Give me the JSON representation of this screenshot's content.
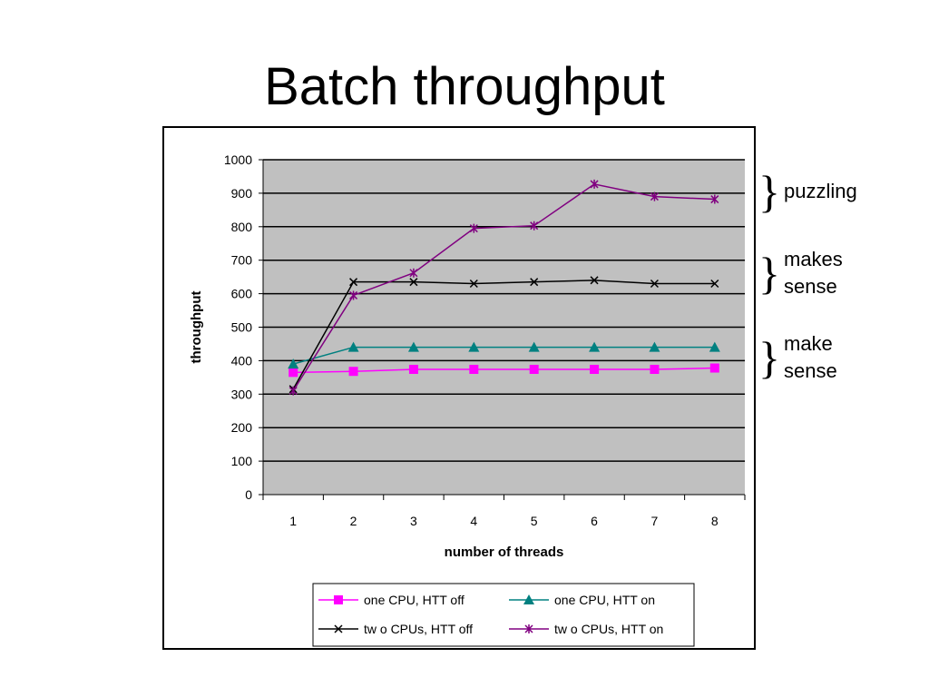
{
  "title": "Batch throughput",
  "chart_data": {
    "type": "line",
    "title": "",
    "xlabel": "number of threads",
    "ylabel": "throughput",
    "categories": [
      "1",
      "2",
      "3",
      "4",
      "5",
      "6",
      "7",
      "8"
    ],
    "ylim": [
      0,
      1000
    ],
    "yticks": [
      0,
      100,
      200,
      300,
      400,
      500,
      600,
      700,
      800,
      900,
      1000
    ],
    "grid": true,
    "legend_position": "bottom",
    "series": [
      {
        "name": "one CPU, HTT off",
        "values": [
          365,
          368,
          374,
          374,
          374,
          374,
          374,
          378
        ],
        "color": "#ff00ff",
        "marker": "square"
      },
      {
        "name": "one CPU, HTT on",
        "values": [
          390,
          440,
          440,
          440,
          440,
          440,
          440,
          440
        ],
        "color": "#008080",
        "marker": "triangle"
      },
      {
        "name": "tw o CPUs, HTT off",
        "values": [
          315,
          635,
          635,
          630,
          635,
          640,
          630,
          630
        ],
        "color": "#000000",
        "marker": "x"
      },
      {
        "name": "tw o CPUs, HTT on",
        "values": [
          310,
          595,
          662,
          795,
          803,
          927,
          890,
          882
        ],
        "color": "#800080",
        "marker": "star"
      }
    ],
    "plot_background": "#c0c0c0"
  },
  "annotations": [
    {
      "id": "puzzling",
      "text": "puzzling",
      "range": [
        870,
        930
      ]
    },
    {
      "id": "makes-sense",
      "text": "makes\nsense",
      "range": [
        620,
        690
      ]
    },
    {
      "id": "make-sense",
      "text": "make\nsense",
      "range": [
        370,
        440
      ]
    }
  ]
}
